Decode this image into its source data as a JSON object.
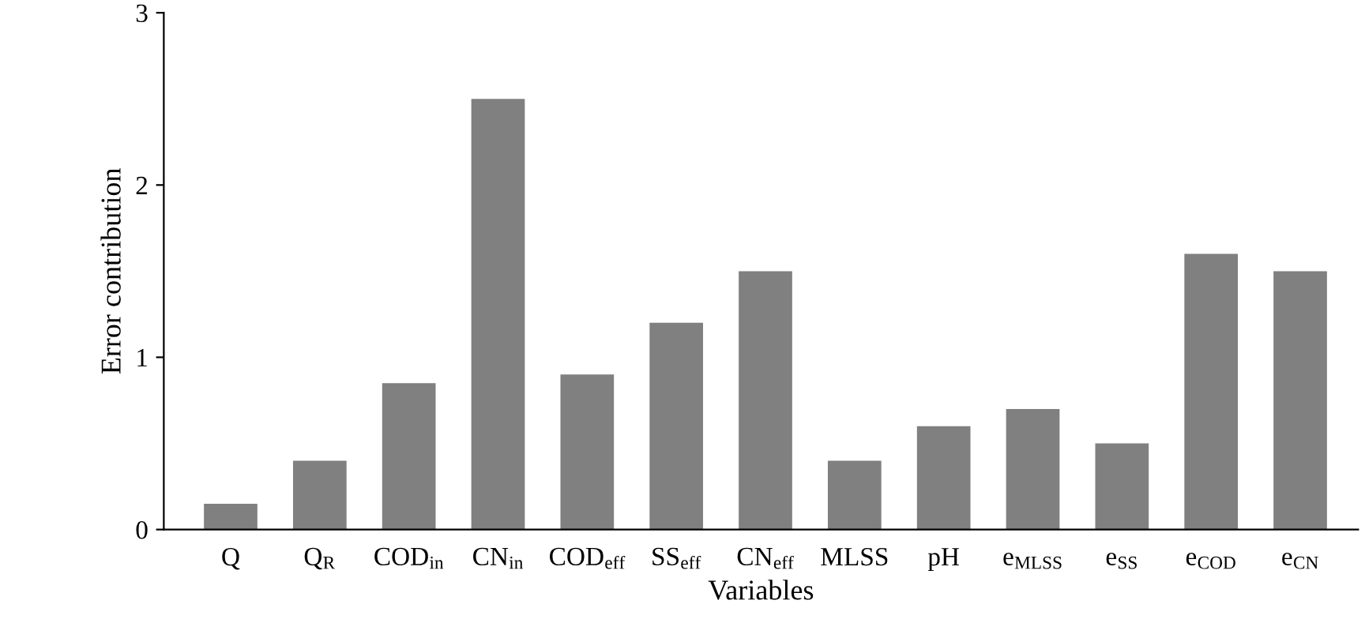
{
  "chart_data": {
    "type": "bar",
    "xlabel": "Variables",
    "ylabel": "Error contribution",
    "categories": [
      "Q",
      "Q$_{R}$",
      "COD$_{in}$",
      "CN$_{in}$",
      "COD$_{eff}$",
      "SS$_{eff}$",
      "CN$_{eff}$",
      "MLSS",
      "pH",
      "e$_{MLSS}$",
      "e$_{SS}$",
      "e$_{COD}$",
      "e$_{CN}$"
    ],
    "values": [
      0.15,
      0.4,
      0.85,
      2.5,
      0.9,
      1.2,
      1.5,
      0.4,
      0.6,
      0.7,
      0.5,
      1.6,
      1.5
    ],
    "color": "#808080",
    "ylim": [
      0,
      3
    ],
    "yticks": [
      0,
      1,
      2,
      3
    ],
    "grid": false,
    "legend": false
  }
}
